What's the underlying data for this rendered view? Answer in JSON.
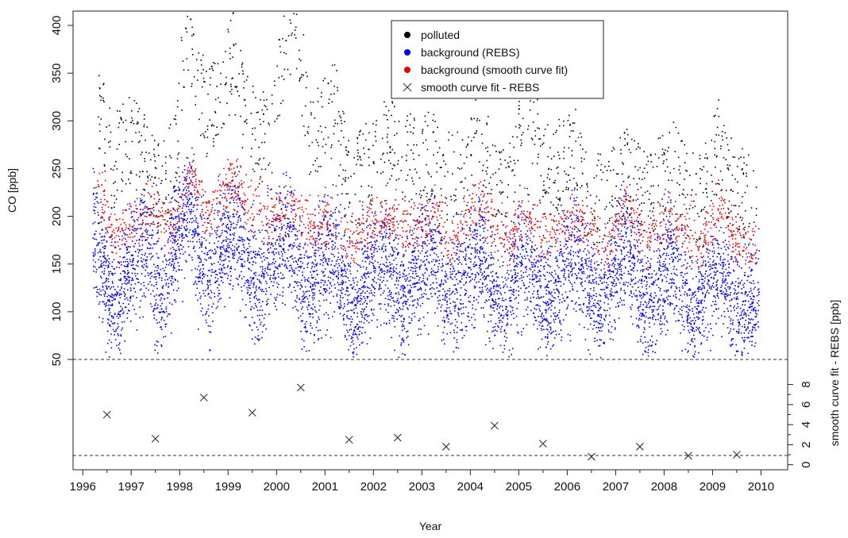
{
  "chart_data": {
    "type": "scatter",
    "title": "",
    "xlabel": "Year",
    "ylabel": "CO [ppb]",
    "ylabel_lower": "smooth curve fit - REBS [ppb]",
    "xlim": [
      1995.8,
      2010.55
    ],
    "ylim": [
      50,
      415
    ],
    "ylim_lower": [
      -0.5,
      10.5
    ],
    "x_ticks": [
      1996,
      1997,
      1998,
      1999,
      2000,
      2001,
      2002,
      2003,
      2004,
      2005,
      2006,
      2007,
      2008,
      2009,
      2010
    ],
    "y_ticks": [
      50,
      100,
      150,
      200,
      250,
      300,
      350,
      400
    ],
    "y_ticks_lower": [
      0,
      2,
      4,
      6,
      8
    ],
    "reference_lines": [
      50,
      0
    ],
    "legend": {
      "position": "top-center",
      "entries": [
        {
          "label": "polluted",
          "color": "#000000",
          "marker": "dot"
        },
        {
          "label": "background (REBS)",
          "color": "#0000ee",
          "marker": "dot"
        },
        {
          "label": "background (smooth curve fit)",
          "color": "#ee0000",
          "marker": "dot"
        },
        {
          "label": "smooth curve fit - REBS",
          "color": "#333333",
          "marker": "cross"
        }
      ]
    },
    "series": [
      {
        "name": "background (REBS)",
        "color": "#0000ee",
        "x": [
          1996.2,
          1996.3,
          1996.5,
          1996.7,
          1996.9,
          1997.1,
          1997.3,
          1997.45,
          1997.6,
          1997.8,
          1998.0,
          1998.2,
          1998.4,
          1998.6,
          1998.8,
          1999.0,
          1999.2,
          1999.4,
          1999.6,
          1999.8,
          2000.0,
          2000.2,
          2000.4,
          2000.6,
          2000.8,
          2001.0,
          2001.2,
          2001.4,
          2001.6,
          2001.8,
          2002.0,
          2002.2,
          2002.4,
          2002.6,
          2002.8,
          2003.0,
          2003.2,
          2003.4,
          2003.6,
          2003.8,
          2004.0,
          2004.2,
          2004.4,
          2004.6,
          2004.8,
          2005.0,
          2005.2,
          2005.4,
          2005.6,
          2005.8,
          2006.0,
          2006.2,
          2006.4,
          2006.6,
          2006.8,
          2007.0,
          2007.2,
          2007.4,
          2007.6,
          2007.8,
          2008.0,
          2008.2,
          2008.4,
          2008.6,
          2008.8,
          2009.0,
          2009.2,
          2009.4,
          2009.6,
          2009.8,
          2009.95
        ],
        "y": [
          195,
          175,
          125,
          100,
          145,
          160,
          175,
          145,
          110,
          150,
          190,
          210,
          165,
          130,
          165,
          180,
          190,
          150,
          120,
          150,
          165,
          180,
          160,
          110,
          140,
          160,
          170,
          130,
          100,
          130,
          150,
          165,
          135,
          115,
          140,
          155,
          165,
          135,
          110,
          135,
          150,
          165,
          135,
          100,
          125,
          145,
          160,
          130,
          100,
          130,
          150,
          165,
          135,
          105,
          125,
          150,
          170,
          140,
          105,
          120,
          140,
          155,
          125,
          95,
          115,
          135,
          145,
          115,
          95,
          105,
          120
        ],
        "spread": 32
      },
      {
        "name": "background (smooth curve fit)",
        "color": "#ee0000",
        "x": [
          1996.25,
          1996.6,
          1997.0,
          1997.4,
          1997.9,
          1998.2,
          1998.6,
          1999.0,
          1999.3,
          1999.9,
          2000.3,
          2000.7,
          2001.1,
          2001.5,
          2002.0,
          2002.3,
          2002.8,
          2003.2,
          2003.6,
          2004.0,
          2004.2,
          2004.8,
          2005.1,
          2005.5,
          2006.0,
          2006.3,
          2006.8,
          2007.2,
          2007.6,
          2008.0,
          2008.2,
          2008.7,
          2009.1,
          2009.5,
          2009.9
        ],
        "y": [
          250,
          180,
          190,
          210,
          185,
          250,
          200,
          235,
          225,
          195,
          215,
          185,
          200,
          170,
          195,
          200,
          185,
          200,
          175,
          200,
          215,
          170,
          205,
          180,
          195,
          200,
          165,
          215,
          175,
          190,
          200,
          165,
          210,
          175,
          170
        ],
        "spread": 14
      },
      {
        "name": "polluted",
        "color": "#000000",
        "x": [
          1996.3,
          1996.6,
          1996.9,
          1997.2,
          1997.5,
          1997.9,
          1998.1,
          1998.3,
          1998.6,
          1998.9,
          1999.1,
          1999.3,
          1999.6,
          1999.9,
          2000.2,
          2000.4,
          2000.7,
          2001.0,
          2001.2,
          2001.5,
          2001.9,
          2002.2,
          2002.5,
          2002.9,
          2003.2,
          2003.5,
          2003.9,
          2004.2,
          2004.5,
          2004.9,
          2005.1,
          2005.5,
          2005.9,
          2006.2,
          2006.5,
          2006.9,
          2007.2,
          2007.5,
          2007.9,
          2008.2,
          2008.5,
          2008.9,
          2009.1,
          2009.5,
          2009.9
        ],
        "y": [
          300,
          240,
          270,
          250,
          215,
          240,
          380,
          330,
          290,
          330,
          350,
          300,
          260,
          280,
          370,
          390,
          260,
          290,
          300,
          210,
          240,
          270,
          250,
          240,
          250,
          230,
          230,
          280,
          220,
          220,
          330,
          230,
          240,
          250,
          200,
          210,
          230,
          210,
          220,
          240,
          200,
          220,
          260,
          210,
          200
        ],
        "spread": 45
      },
      {
        "name": "smooth curve fit - REBS",
        "color": "#333333",
        "marker": "cross",
        "x": [
          1996.5,
          1997.5,
          1998.5,
          1999.5,
          2000.5,
          2001.5,
          2002.5,
          2003.5,
          2004.5,
          2005.5,
          2006.5,
          2007.5,
          2008.5,
          2009.5
        ],
        "y": [
          5.0,
          2.6,
          6.7,
          5.2,
          7.7,
          2.5,
          2.7,
          1.8,
          3.9,
          2.1,
          0.8,
          1.8,
          0.9,
          1.0
        ]
      }
    ]
  }
}
